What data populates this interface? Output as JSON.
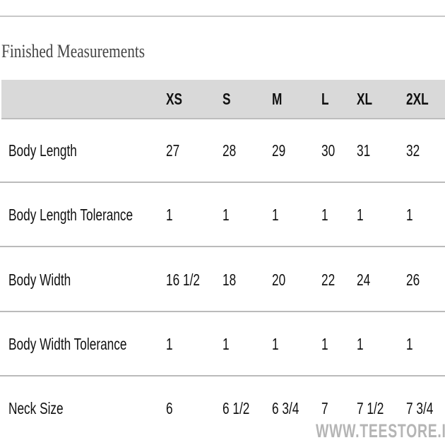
{
  "title": "Finished Measurements",
  "sizes": [
    "XS",
    "S",
    "M",
    "L",
    "XL",
    "2XL"
  ],
  "rows": [
    {
      "label": "Body Length",
      "values": [
        "27",
        "28",
        "29",
        "30",
        "31",
        "32"
      ]
    },
    {
      "label": "Body Length Tolerance",
      "values": [
        "1",
        "1",
        "1",
        "1",
        "1",
        "1"
      ]
    },
    {
      "label": "Body Width",
      "values": [
        "16 1/2",
        "18",
        "20",
        "22",
        "24",
        "26"
      ]
    },
    {
      "label": "Body Width Tolerance",
      "values": [
        "1",
        "1",
        "1",
        "1",
        "1",
        "1"
      ]
    },
    {
      "label": "Neck Size",
      "values": [
        "6",
        "6 1/2",
        "6 3/4",
        "7",
        "7 1/2",
        "7 3/4"
      ]
    }
  ],
  "watermark": "WWW.TEESTORE.IO"
}
